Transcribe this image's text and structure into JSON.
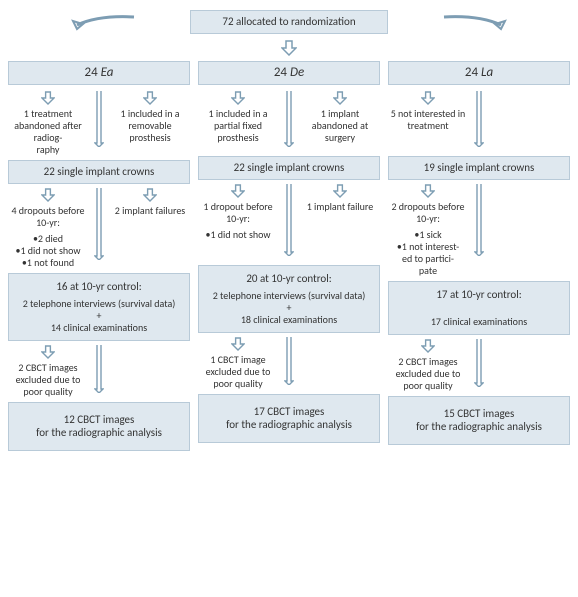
{
  "colors": {
    "box_fill": "#dfe8ef",
    "box_border": "#b8cad8",
    "arrow_stroke": "#7d9db3",
    "text": "#333333",
    "bg": "#ffffff"
  },
  "root": {
    "label": "72 allocated to randomization"
  },
  "arms": [
    {
      "title_n": "24",
      "title_name": "Ea",
      "excl_left": "1 treatment abandoned after radiog-\nraphy",
      "excl_right": "1 included in a removable prosthesis",
      "crowns": "22 single implant crowns",
      "drop_left_head": "4 dropouts before 10-yr:",
      "drop_left_bullets": [
        "2 died",
        "1 did not show",
        "1 not found"
      ],
      "drop_right": "2 implant failures",
      "control_head": "16 at 10-yr control:",
      "control_line1": "2 telephone interviews (survival data)",
      "control_plus": "+",
      "control_line2": "14 clinical examinations",
      "cbct_excl": "2 CBCT images excluded due to poor quality",
      "final_top": "12 CBCT images",
      "final_bottom": "for the radiographic analysis"
    },
    {
      "title_n": "24",
      "title_name": "De",
      "excl_left": "1 included in a partial fixed prosthesis",
      "excl_right": "1 implant abandoned at surgery",
      "crowns": "22 single implant crowns",
      "drop_left_head": "1 dropout before 10-yr:",
      "drop_left_bullets": [
        "1 did not show"
      ],
      "drop_right": "1 implant failure",
      "control_head": "20 at 10-yr control:",
      "control_line1": "2 telephone interviews (survival data)",
      "control_plus": "+",
      "control_line2": "18 clinical examinations",
      "cbct_excl": "1 CBCT image excluded due to poor quality",
      "final_top": "17 CBCT images",
      "final_bottom": "for the radiographic analysis"
    },
    {
      "title_n": "24",
      "title_name": "La",
      "excl_left": "5 not interested in treatment",
      "excl_right": "",
      "crowns": "19 single implant crowns",
      "drop_left_head": "2 dropouts before 10-yr:",
      "drop_left_bullets": [
        "1 sick",
        "1 not interest-\ned to partici-\npate"
      ],
      "drop_right": "",
      "control_head": "17 at 10-yr control:",
      "control_line1": "",
      "control_plus": "",
      "control_line2": "17 clinical examinations",
      "cbct_excl": "2 CBCT images excluded due to poor quality",
      "final_top": "15 CBCT images",
      "final_bottom": "for the radiographic analysis"
    }
  ]
}
